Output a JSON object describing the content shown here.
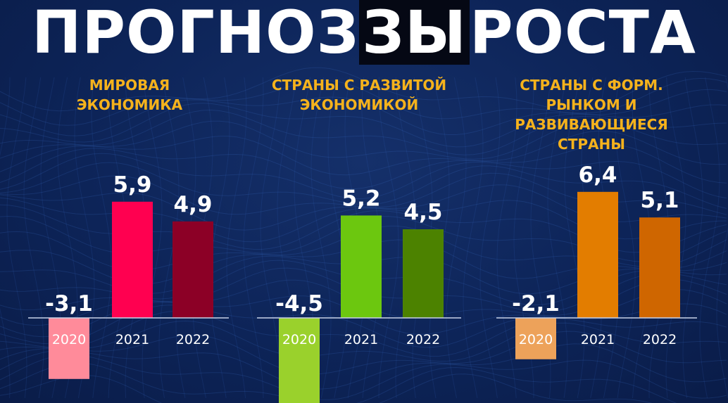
{
  "title": {
    "part1": "ПРОГНОЗ",
    "part2": "ЗЫ",
    "part3": "РОСТА"
  },
  "chart_data": [
    {
      "type": "bar",
      "title_lines": [
        "МИРОВАЯ",
        "ЭКОНОМИКА"
      ],
      "categories": [
        "2020",
        "2021",
        "2022"
      ],
      "values": [
        -3.1,
        5.9,
        4.9
      ],
      "value_labels": [
        "-3,1",
        "5,9",
        "4,9"
      ],
      "colors": [
        "#ff8b9a",
        "#ff0050",
        "#8c0026"
      ]
    },
    {
      "type": "bar",
      "title_lines": [
        "СТРАНЫ С РАЗВИТОЙ",
        "ЭКОНОМИКОЙ"
      ],
      "categories": [
        "2020",
        "2021",
        "2022"
      ],
      "values": [
        -4.5,
        5.2,
        4.5
      ],
      "value_labels": [
        "-4,5",
        "5,2",
        "4,5"
      ],
      "colors": [
        "#9ad12c",
        "#6cc70f",
        "#4c8200"
      ]
    },
    {
      "type": "bar",
      "title_lines": [
        "СТРАНЫ С ФОРМ.",
        "РЫНКОМ И",
        "РАЗВИВАЮЩИЕСЯ",
        "СТРАНЫ"
      ],
      "categories": [
        "2020",
        "2021",
        "2022"
      ],
      "values": [
        -2.1,
        6.4,
        5.1
      ],
      "value_labels": [
        "-2,1",
        "6,4",
        "5,1"
      ],
      "colors": [
        "#eda25a",
        "#e37d00",
        "#cf6600"
      ]
    }
  ]
}
